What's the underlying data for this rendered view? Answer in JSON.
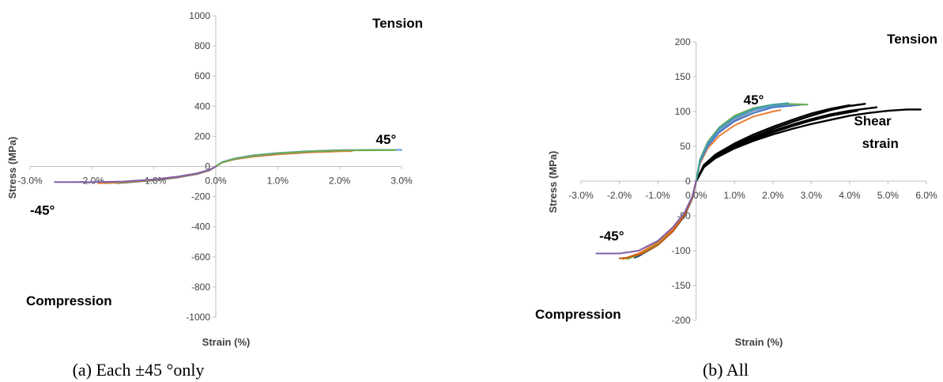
{
  "chart_data": [
    {
      "id": "a",
      "type": "line",
      "caption": "(a) Each ±45 °only",
      "xlabel": "Strain (%)",
      "ylabel": "Stress (MPa)",
      "xlim": [
        -3,
        3
      ],
      "ylim": [
        -1000,
        1000
      ],
      "x_ticks": [
        -3,
        -2,
        -1,
        0,
        1,
        2,
        3
      ],
      "x_tick_labels": [
        "-3.0%",
        "-2.0%",
        "-1.0%",
        "0.0%",
        "1.0%",
        "2.0%",
        "3.0%"
      ],
      "y_ticks": [
        1000,
        800,
        600,
        400,
        200,
        0,
        -200,
        -400,
        -600,
        -800,
        -1000
      ],
      "y_tick_labels": [
        "1000",
        "800",
        "600",
        "400",
        "200",
        "0",
        "-200",
        "-400",
        "-600",
        "-800",
        "-1000"
      ],
      "grid": false,
      "annotations": [
        {
          "text": "Tension",
          "x": 2.7,
          "y": 920
        },
        {
          "text": "45°",
          "x": 2.75,
          "y": 150
        },
        {
          "text": "-45°",
          "x": -2.8,
          "y": -320
        },
        {
          "text": "Compression",
          "x": -2.2,
          "y": -920
        }
      ],
      "series": [
        {
          "color": "#ED7D31",
          "x": [
            0,
            0.1,
            0.3,
            0.6,
            1.0,
            1.5,
            2.0,
            2.2
          ],
          "y": [
            0,
            25,
            47,
            65,
            80,
            93,
            100,
            102
          ]
        },
        {
          "color": "#A5A5A5",
          "x": [
            0,
            0.1,
            0.3,
            0.6,
            1.0,
            1.5,
            2.0,
            2.6
          ],
          "y": [
            0,
            28,
            52,
            72,
            88,
            101,
            108,
            110
          ]
        },
        {
          "color": "#4472C4",
          "x": [
            0,
            0.1,
            0.3,
            0.6,
            1.0,
            1.5,
            2.0,
            2.8
          ],
          "y": [
            0,
            27,
            50,
            70,
            86,
            98,
            106,
            110
          ]
        },
        {
          "color": "#5B9BD5",
          "x": [
            0,
            0.1,
            0.3,
            0.6,
            1.0,
            1.5,
            2.0,
            3.0
          ],
          "y": [
            0,
            29,
            53,
            74,
            90,
            102,
            108,
            110
          ]
        },
        {
          "color": "#70AD47",
          "x": [
            0,
            0.1,
            0.3,
            0.6,
            1.0,
            1.5,
            2.0,
            2.9
          ],
          "y": [
            0,
            27,
            51,
            71,
            87,
            99,
            106,
            108
          ]
        },
        {
          "color": "#264478",
          "x": [
            0,
            -0.1,
            -0.3,
            -0.6,
            -1.0,
            -1.5,
            -1.6
          ],
          "y": [
            0,
            -25,
            -50,
            -72,
            -92,
            -108,
            -110
          ]
        },
        {
          "color": "#70AD47",
          "x": [
            0,
            -0.1,
            -0.3,
            -0.6,
            -1.0,
            -1.5,
            -1.8
          ],
          "y": [
            0,
            -24,
            -48,
            -70,
            -90,
            -106,
            -112
          ]
        },
        {
          "color": "#ED7D31",
          "x": [
            0,
            -0.1,
            -0.3,
            -0.6,
            -1.0,
            -1.5,
            -1.9
          ],
          "y": [
            0,
            -23,
            -47,
            -69,
            -88,
            -104,
            -112
          ]
        },
        {
          "color": "#7F5FA8",
          "x": [
            0,
            -0.1,
            -0.3,
            -0.6,
            -1.0,
            -1.5,
            -2.0,
            -2.6
          ],
          "y": [
            0,
            -22,
            -45,
            -66,
            -86,
            -100,
            -104,
            -104
          ]
        }
      ]
    },
    {
      "id": "b",
      "type": "line",
      "caption": "(b) All",
      "xlabel": "Strain (%)",
      "ylabel": "Stress (MPa)",
      "xlim": [
        -3,
        6
      ],
      "ylim": [
        -200,
        200
      ],
      "x_ticks": [
        -3,
        -2,
        -1,
        0,
        1,
        2,
        3,
        4,
        5,
        6
      ],
      "x_tick_labels": [
        "-3.0%",
        "-2.0%",
        "-1.0%",
        "0.0%",
        "1.0%",
        "2.0%",
        "3.0%",
        "4.0%",
        "5.0%",
        "6.0%"
      ],
      "y_ticks": [
        200,
        150,
        100,
        50,
        0,
        -50,
        -100,
        -150,
        -200
      ],
      "y_tick_labels": [
        "200",
        "150",
        "100",
        "50",
        "0",
        "-50",
        "-100",
        "-150",
        "-200"
      ],
      "grid": false,
      "annotations": [
        {
          "text": "Tension",
          "x": 5.7,
          "y": 198
        },
        {
          "text": "45°",
          "x": 1.5,
          "y": 110
        },
        {
          "text": "Shear",
          "x": 4.6,
          "y": 80
        },
        {
          "text": "strain",
          "x": 4.8,
          "y": 48
        },
        {
          "text": "-45°",
          "x": -2.2,
          "y": -85
        },
        {
          "text": "Compression",
          "x": -4.0,
          "y": -198
        }
      ],
      "series": [
        {
          "color": "#000000",
          "x": [
            0,
            0.2,
            0.5,
            1.0,
            1.5,
            2.0,
            2.5,
            3.0,
            3.5,
            4.0,
            4.5,
            5.0,
            5.5,
            5.85
          ],
          "y": [
            0,
            20,
            33,
            47,
            58,
            67,
            75,
            82,
            88,
            94,
            98,
            101,
            103,
            103
          ]
        },
        {
          "color": "#000000",
          "x": [
            0,
            0.2,
            0.5,
            1.0,
            1.5,
            2.0,
            2.5,
            3.0,
            3.5,
            4.0,
            4.4
          ],
          "y": [
            0,
            22,
            37,
            52,
            64,
            75,
            85,
            94,
            102,
            108,
            111
          ]
        },
        {
          "color": "#000000",
          "x": [
            0,
            0.2,
            0.5,
            1.0,
            1.5,
            2.0,
            2.5,
            3.0,
            3.5,
            4.0,
            4.7
          ],
          "y": [
            0,
            21,
            35,
            50,
            62,
            72,
            81,
            89,
            96,
            101,
            106
          ]
        },
        {
          "color": "#000000",
          "x": [
            0,
            0.2,
            0.5,
            1.0,
            1.5,
            2.0,
            2.5,
            3.0,
            3.5,
            4.0
          ],
          "y": [
            0,
            23,
            38,
            54,
            67,
            78,
            88,
            97,
            104,
            109
          ]
        },
        {
          "color": "#000000",
          "x": [
            0,
            0.2,
            0.5,
            1.0,
            1.5,
            2.0,
            2.5,
            3.0,
            3.5,
            4.2
          ],
          "y": [
            0,
            20,
            34,
            49,
            60,
            70,
            79,
            87,
            94,
            101
          ]
        },
        {
          "color": "#ED7D31",
          "x": [
            0,
            0.1,
            0.3,
            0.6,
            1.0,
            1.5,
            2.0,
            2.2
          ],
          "y": [
            0,
            25,
            47,
            65,
            80,
            93,
            100,
            102
          ]
        },
        {
          "color": "#A5A5A5",
          "x": [
            0,
            0.1,
            0.3,
            0.6,
            1.0,
            1.5,
            2.0,
            2.6
          ],
          "y": [
            0,
            28,
            52,
            72,
            88,
            101,
            108,
            110
          ]
        },
        {
          "color": "#4472C4",
          "x": [
            0,
            0.1,
            0.3,
            0.6,
            1.0,
            1.5,
            2.0,
            2.8
          ],
          "y": [
            0,
            27,
            50,
            70,
            86,
            98,
            106,
            110
          ]
        },
        {
          "color": "#5B9BD5",
          "x": [
            0,
            0.1,
            0.3,
            0.6,
            1.0,
            1.5,
            2.0,
            2.4,
            2.9
          ],
          "y": [
            0,
            29,
            53,
            74,
            90,
            102,
            108,
            110,
            110
          ]
        },
        {
          "color": "#70AD47",
          "x": [
            0,
            0.1,
            0.3,
            0.6,
            1.0,
            1.5,
            2.0,
            2.3,
            2.9
          ],
          "y": [
            0,
            31,
            56,
            77,
            94,
            105,
            110,
            111,
            110
          ]
        },
        {
          "color": "#43A0A0",
          "x": [
            0,
            0.1,
            0.3,
            0.6,
            1.0,
            1.5,
            2.0,
            2.4
          ],
          "y": [
            0,
            30,
            55,
            76,
            92,
            104,
            110,
            112
          ]
        },
        {
          "color": "#264478",
          "x": [
            0,
            -0.1,
            -0.3,
            -0.6,
            -1.0,
            -1.5,
            -1.6
          ],
          "y": [
            0,
            -25,
            -50,
            -72,
            -92,
            -108,
            -110
          ]
        },
        {
          "color": "#70AD47",
          "x": [
            0,
            -0.1,
            -0.3,
            -0.6,
            -1.0,
            -1.5,
            -1.8
          ],
          "y": [
            0,
            -24,
            -48,
            -70,
            -90,
            -106,
            -112
          ]
        },
        {
          "color": "#ED7D31",
          "x": [
            0,
            -0.1,
            -0.3,
            -0.6,
            -1.0,
            -1.5,
            -1.9
          ],
          "y": [
            0,
            -23,
            -47,
            -69,
            -88,
            -104,
            -112
          ]
        },
        {
          "color": "#C55A11",
          "x": [
            0,
            -0.1,
            -0.3,
            -0.6,
            -1.0,
            -1.4,
            -1.8,
            -2.0
          ],
          "y": [
            0,
            -24,
            -49,
            -72,
            -92,
            -104,
            -110,
            -111
          ]
        },
        {
          "color": "#7F5FA8",
          "x": [
            0,
            -0.1,
            -0.3,
            -0.6,
            -1.0,
            -1.5,
            -2.0,
            -2.6
          ],
          "y": [
            0,
            -22,
            -45,
            -66,
            -86,
            -100,
            -104,
            -104
          ]
        }
      ]
    }
  ]
}
